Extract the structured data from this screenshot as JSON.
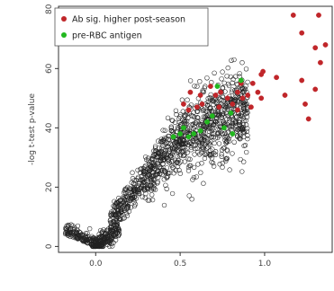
{
  "chart_data": {
    "type": "scatter",
    "title": "",
    "xlabel": "",
    "ylabel": "-log t-test p-value",
    "xlim": [
      -0.22,
      1.4
    ],
    "ylim": [
      -2,
      81
    ],
    "xticks": [
      "0.0",
      "0.5",
      "1.0"
    ],
    "xtick_values": [
      0.0,
      0.5,
      1.0
    ],
    "yticks": [
      "0",
      "20",
      "40",
      "60",
      "80"
    ],
    "ytick_values": [
      0,
      20,
      40,
      60,
      80
    ],
    "grid": false,
    "legend_position": "top-left",
    "series": [
      {
        "name": "Ab sig. higher post-season",
        "color": "#c0262a",
        "marker": "filled-circle",
        "points": [
          [
            1.17,
            78
          ],
          [
            1.32,
            78
          ],
          [
            1.22,
            72
          ],
          [
            1.36,
            68
          ],
          [
            1.3,
            67
          ],
          [
            1.33,
            62
          ],
          [
            1.22,
            56
          ],
          [
            1.3,
            53
          ],
          [
            1.12,
            51
          ],
          [
            1.24,
            48
          ],
          [
            1.26,
            43
          ],
          [
            1.07,
            57
          ],
          [
            0.98,
            58
          ],
          [
            0.93,
            55
          ],
          [
            0.86,
            55
          ],
          [
            0.9,
            51
          ],
          [
            0.84,
            52
          ],
          [
            0.96,
            52
          ],
          [
            0.98,
            50
          ],
          [
            0.92,
            47
          ],
          [
            0.74,
            52
          ],
          [
            0.78,
            50
          ],
          [
            0.68,
            54
          ],
          [
            0.71,
            51
          ],
          [
            0.62,
            51
          ],
          [
            0.56,
            52
          ],
          [
            0.52,
            48
          ],
          [
            0.63,
            48
          ],
          [
            0.81,
            48
          ],
          [
            0.87,
            50
          ],
          [
            0.6,
            47
          ],
          [
            0.73,
            47
          ],
          [
            0.84,
            46
          ],
          [
            0.99,
            59
          ],
          [
            0.55,
            46
          ]
        ]
      },
      {
        "name": "pre-RBC antigen",
        "color": "#22b81f",
        "marker": "filled-circle",
        "points": [
          [
            0.86,
            56
          ],
          [
            0.72,
            54
          ],
          [
            0.69,
            44
          ],
          [
            0.66,
            42
          ],
          [
            0.76,
            40
          ],
          [
            0.81,
            38
          ],
          [
            0.52,
            40
          ],
          [
            0.55,
            37
          ],
          [
            0.5,
            38
          ],
          [
            0.58,
            38
          ],
          [
            0.46,
            37
          ],
          [
            0.62,
            39
          ],
          [
            0.8,
            45
          ]
        ]
      }
    ],
    "background_series": {
      "color": "#222222",
      "marker": "open-circle",
      "description": "all other antigens",
      "points_estimated": 1400
    }
  }
}
